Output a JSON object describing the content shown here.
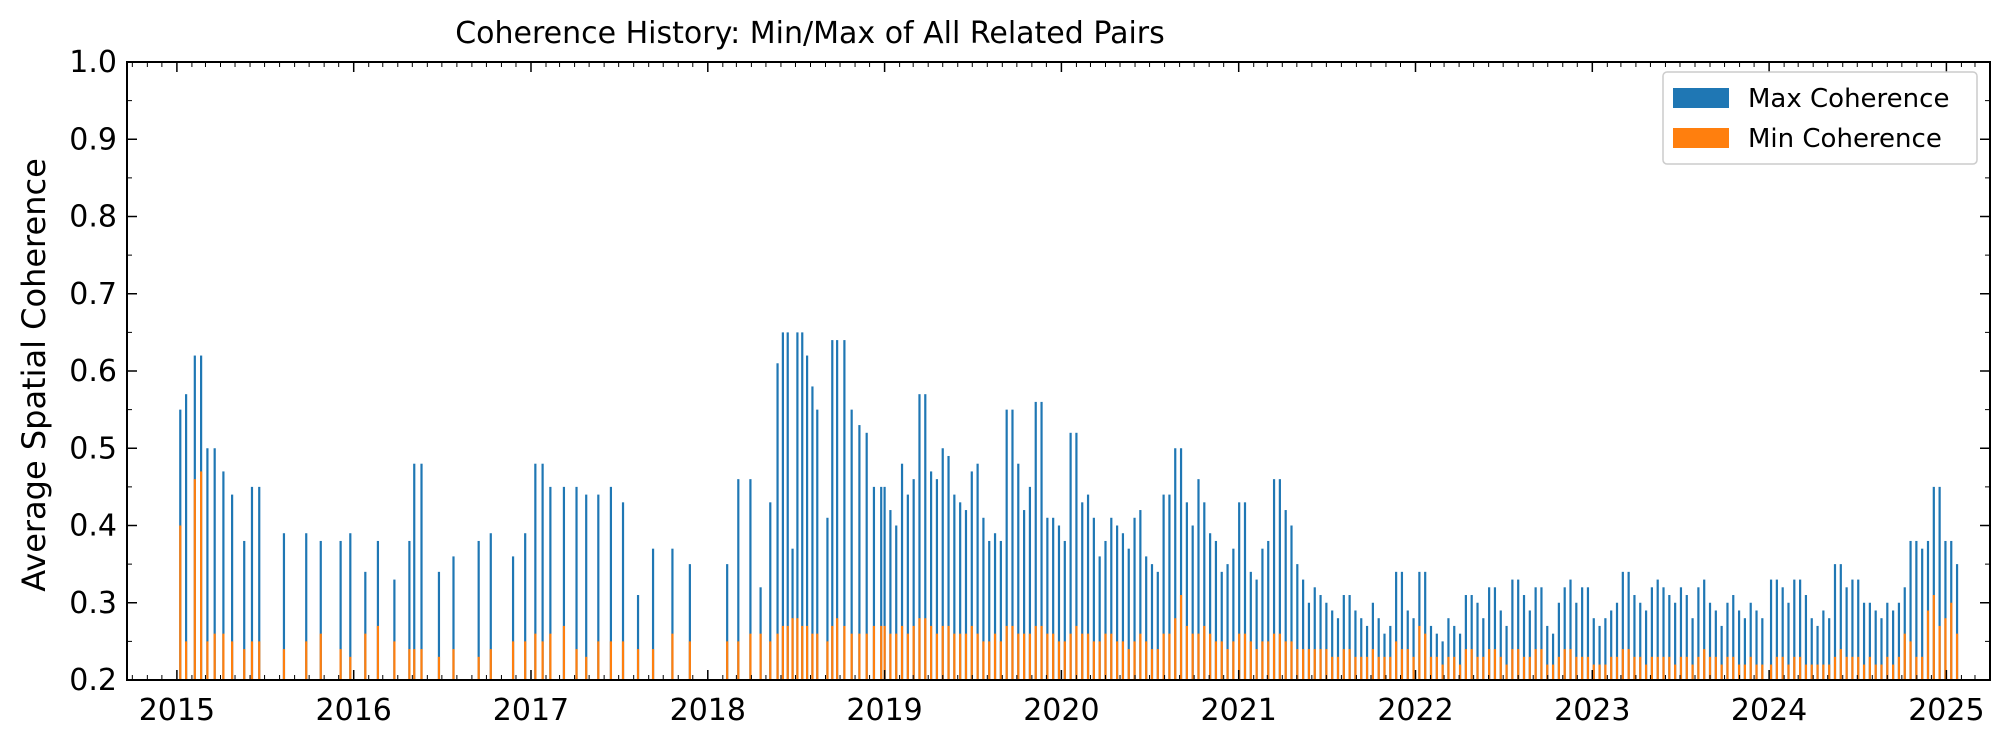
{
  "chart_data": {
    "type": "bar",
    "title": "Coherence History: Min/Max of All Related Pairs",
    "xlabel": "",
    "ylabel": "Average Spatial Coherence",
    "xlim": [
      "2014-09-20",
      "2025-04-01"
    ],
    "ylim": [
      0.2,
      1.0
    ],
    "y_ticks": [
      "0.2",
      "0.3",
      "0.4",
      "0.5",
      "0.6",
      "0.7",
      "0.8",
      "0.9",
      "1.0"
    ],
    "x_ticks": [
      "2015",
      "2016",
      "2017",
      "2018",
      "2019",
      "2020",
      "2021",
      "2022",
      "2023",
      "2024",
      "2025"
    ],
    "legend_position": "top-right",
    "grid": false,
    "colors": {
      "max": "#1f77b4",
      "min": "#ff7f0e"
    },
    "series": [
      {
        "name": "Max Coherence",
        "key": "max",
        "points": [
          [
            "2015-01-08",
            0.55
          ],
          [
            "2015-01-20",
            0.57
          ],
          [
            "2015-02-07",
            0.62
          ],
          [
            "2015-02-20",
            0.62
          ],
          [
            "2015-03-05",
            0.5
          ],
          [
            "2015-03-20",
            0.5
          ],
          [
            "2015-04-07",
            0.47
          ],
          [
            "2015-04-25",
            0.44
          ],
          [
            "2015-05-20",
            0.38
          ],
          [
            "2015-06-05",
            0.45
          ],
          [
            "2015-06-20",
            0.45
          ],
          [
            "2015-08-10",
            0.39
          ],
          [
            "2015-09-25",
            0.39
          ],
          [
            "2015-10-25",
            0.38
          ],
          [
            "2015-12-05",
            0.38
          ],
          [
            "2015-12-25",
            0.39
          ],
          [
            "2016-01-25",
            0.34
          ],
          [
            "2016-02-20",
            0.38
          ],
          [
            "2016-03-25",
            0.33
          ],
          [
            "2016-04-25",
            0.38
          ],
          [
            "2016-05-05",
            0.48
          ],
          [
            "2016-05-20",
            0.48
          ],
          [
            "2016-06-25",
            0.34
          ],
          [
            "2016-07-25",
            0.36
          ],
          [
            "2016-09-15",
            0.38
          ],
          [
            "2016-10-10",
            0.39
          ],
          [
            "2016-11-25",
            0.36
          ],
          [
            "2016-12-20",
            0.39
          ],
          [
            "2017-01-10",
            0.48
          ],
          [
            "2017-01-25",
            0.48
          ],
          [
            "2017-02-10",
            0.45
          ],
          [
            "2017-03-10",
            0.45
          ],
          [
            "2017-04-05",
            0.45
          ],
          [
            "2017-04-25",
            0.44
          ],
          [
            "2017-05-20",
            0.44
          ],
          [
            "2017-06-15",
            0.45
          ],
          [
            "2017-07-10",
            0.43
          ],
          [
            "2017-08-10",
            0.31
          ],
          [
            "2017-09-10",
            0.37
          ],
          [
            "2017-10-20",
            0.37
          ],
          [
            "2017-11-25",
            0.35
          ],
          [
            "2018-02-10",
            0.35
          ],
          [
            "2018-03-05",
            0.46
          ],
          [
            "2018-03-30",
            0.46
          ],
          [
            "2018-04-20",
            0.32
          ],
          [
            "2018-05-10",
            0.43
          ],
          [
            "2018-05-25",
            0.61
          ],
          [
            "2018-06-05",
            0.65
          ],
          [
            "2018-06-15",
            0.65
          ],
          [
            "2018-06-25",
            0.37
          ],
          [
            "2018-07-05",
            0.65
          ],
          [
            "2018-07-15",
            0.65
          ],
          [
            "2018-07-25",
            0.62
          ],
          [
            "2018-08-05",
            0.58
          ],
          [
            "2018-08-15",
            0.55
          ],
          [
            "2018-09-05",
            0.41
          ],
          [
            "2018-09-15",
            0.64
          ],
          [
            "2018-09-25",
            0.64
          ],
          [
            "2018-10-10",
            0.64
          ],
          [
            "2018-10-25",
            0.55
          ],
          [
            "2018-11-10",
            0.53
          ],
          [
            "2018-11-25",
            0.52
          ],
          [
            "2018-12-10",
            0.45
          ],
          [
            "2018-12-25",
            0.45
          ]
        ]
      },
      {
        "name": "Min Coherence",
        "key": "min",
        "points": [
          [
            "2015-01-08",
            0.4
          ],
          [
            "2015-01-20",
            0.25
          ],
          [
            "2015-02-07",
            0.46
          ],
          [
            "2015-02-20",
            0.47
          ],
          [
            "2015-03-05",
            0.25
          ],
          [
            "2015-03-20",
            0.26
          ],
          [
            "2015-04-07",
            0.26
          ],
          [
            "2015-04-25",
            0.25
          ],
          [
            "2015-05-20",
            0.24
          ],
          [
            "2015-06-05",
            0.25
          ],
          [
            "2015-06-20",
            0.25
          ],
          [
            "2015-08-10",
            0.24
          ],
          [
            "2015-09-25",
            0.25
          ],
          [
            "2015-10-25",
            0.26
          ],
          [
            "2015-12-05",
            0.24
          ],
          [
            "2015-12-25",
            0.23
          ],
          [
            "2016-01-25",
            0.26
          ],
          [
            "2016-02-20",
            0.27
          ],
          [
            "2016-03-25",
            0.25
          ],
          [
            "2016-04-25",
            0.24
          ],
          [
            "2016-05-05",
            0.24
          ],
          [
            "2016-05-20",
            0.24
          ],
          [
            "2016-06-25",
            0.23
          ],
          [
            "2016-07-25",
            0.24
          ],
          [
            "2016-09-15",
            0.23
          ],
          [
            "2016-10-10",
            0.24
          ],
          [
            "2016-11-25",
            0.25
          ],
          [
            "2016-12-20",
            0.25
          ],
          [
            "2017-01-10",
            0.26
          ],
          [
            "2017-01-25",
            0.25
          ],
          [
            "2017-02-10",
            0.26
          ],
          [
            "2017-03-10",
            0.27
          ],
          [
            "2017-04-05",
            0.24
          ],
          [
            "2017-04-25",
            0.23
          ],
          [
            "2017-05-20",
            0.25
          ],
          [
            "2017-06-15",
            0.25
          ],
          [
            "2017-07-10",
            0.25
          ],
          [
            "2017-08-10",
            0.24
          ],
          [
            "2017-09-10",
            0.24
          ],
          [
            "2017-10-20",
            0.26
          ],
          [
            "2017-11-25",
            0.25
          ],
          [
            "2018-02-10",
            0.25
          ],
          [
            "2018-03-05",
            0.25
          ],
          [
            "2018-03-30",
            0.26
          ],
          [
            "2018-04-20",
            0.26
          ],
          [
            "2018-05-10",
            0.25
          ],
          [
            "2018-05-25",
            0.26
          ],
          [
            "2018-06-05",
            0.27
          ],
          [
            "2018-06-15",
            0.27
          ],
          [
            "2018-06-25",
            0.28
          ],
          [
            "2018-07-05",
            0.28
          ],
          [
            "2018-07-15",
            0.27
          ],
          [
            "2018-07-25",
            0.27
          ],
          [
            "2018-08-05",
            0.26
          ],
          [
            "2018-08-15",
            0.26
          ],
          [
            "2018-09-05",
            0.25
          ],
          [
            "2018-09-15",
            0.27
          ],
          [
            "2018-09-25",
            0.28
          ],
          [
            "2018-10-10",
            0.27
          ],
          [
            "2018-10-25",
            0.26
          ],
          [
            "2018-11-10",
            0.26
          ],
          [
            "2018-11-25",
            0.26
          ],
          [
            "2018-12-10",
            0.27
          ],
          [
            "2018-12-25",
            0.27
          ]
        ]
      }
    ],
    "dense_segments": [
      {
        "start": "2019-01-01",
        "end": "2023-12-20",
        "step_days": 12,
        "max_values": [
          0.45,
          0.42,
          0.4,
          0.48,
          0.44,
          0.46,
          0.57,
          0.57,
          0.47,
          0.46,
          0.5,
          0.49,
          0.44,
          0.43,
          0.42,
          0.47,
          0.48,
          0.41,
          0.38,
          0.39,
          0.38,
          0.55,
          0.55,
          0.48,
          0.42,
          0.45,
          0.56,
          0.56,
          0.41,
          0.41,
          0.4,
          0.38,
          0.52,
          0.52,
          0.43,
          0.44,
          0.41,
          0.36,
          0.38,
          0.41,
          0.4,
          0.39,
          0.37,
          0.41,
          0.42,
          0.36,
          0.35,
          0.34,
          0.44,
          0.44,
          0.5,
          0.5,
          0.43,
          0.4,
          0.46,
          0.43,
          0.39,
          0.38,
          0.34,
          0.35,
          0.37,
          0.43,
          0.43,
          0.34,
          0.33,
          0.37,
          0.38,
          0.46,
          0.46,
          0.42,
          0.4,
          0.35,
          0.33,
          0.3,
          0.32,
          0.31,
          0.3,
          0.29,
          0.28,
          0.31,
          0.31,
          0.29,
          0.28,
          0.27,
          0.3,
          0.28,
          0.26,
          0.27,
          0.34,
          0.34,
          0.29,
          0.28,
          0.34,
          0.34,
          0.27,
          0.26,
          0.25,
          0.28,
          0.27,
          0.26,
          0.31,
          0.31,
          0.3,
          0.28,
          0.32,
          0.32,
          0.29,
          0.27,
          0.33,
          0.33,
          0.31,
          0.29,
          0.32,
          0.32,
          0.27,
          0.26,
          0.3,
          0.32,
          0.33,
          0.3,
          0.32,
          0.32,
          0.28,
          0.27,
          0.28,
          0.29,
          0.3,
          0.34,
          0.34,
          0.31,
          0.3,
          0.29,
          0.32,
          0.33,
          0.32,
          0.31,
          0.3,
          0.32,
          0.31,
          0.28,
          0.32,
          0.33,
          0.3,
          0.29,
          0.27,
          0.3,
          0.31,
          0.29,
          0.28,
          0.3,
          0.29,
          0.28
        ],
        "min_values": [
          0.27,
          0.26,
          0.26,
          0.27,
          0.26,
          0.27,
          0.28,
          0.28,
          0.27,
          0.26,
          0.27,
          0.27,
          0.26,
          0.26,
          0.26,
          0.27,
          0.26,
          0.25,
          0.25,
          0.26,
          0.25,
          0.27,
          0.27,
          0.26,
          0.26,
          0.26,
          0.27,
          0.27,
          0.26,
          0.26,
          0.25,
          0.25,
          0.26,
          0.27,
          0.26,
          0.26,
          0.25,
          0.25,
          0.26,
          0.26,
          0.25,
          0.25,
          0.24,
          0.25,
          0.26,
          0.25,
          0.24,
          0.24,
          0.26,
          0.26,
          0.28,
          0.31,
          0.27,
          0.26,
          0.26,
          0.27,
          0.26,
          0.25,
          0.25,
          0.24,
          0.25,
          0.26,
          0.26,
          0.25,
          0.24,
          0.25,
          0.25,
          0.26,
          0.26,
          0.25,
          0.25,
          0.24,
          0.24,
          0.24,
          0.24,
          0.24,
          0.24,
          0.23,
          0.23,
          0.24,
          0.24,
          0.23,
          0.23,
          0.23,
          0.24,
          0.23,
          0.23,
          0.23,
          0.25,
          0.24,
          0.24,
          0.23,
          0.27,
          0.26,
          0.23,
          0.23,
          0.22,
          0.23,
          0.23,
          0.22,
          0.24,
          0.24,
          0.23,
          0.23,
          0.24,
          0.24,
          0.23,
          0.22,
          0.24,
          0.24,
          0.23,
          0.23,
          0.24,
          0.24,
          0.22,
          0.22,
          0.23,
          0.24,
          0.24,
          0.23,
          0.23,
          0.23,
          0.22,
          0.22,
          0.22,
          0.23,
          0.23,
          0.24,
          0.24,
          0.23,
          0.23,
          0.22,
          0.23,
          0.23,
          0.23,
          0.23,
          0.22,
          0.23,
          0.23,
          0.22,
          0.23,
          0.24,
          0.23,
          0.23,
          0.22,
          0.23,
          0.23,
          0.22,
          0.22,
          0.23,
          0.22,
          0.22
        ]
      },
      {
        "start": "2024-01-05",
        "end": "2025-01-31",
        "step_days": 12,
        "max_values": [
          0.33,
          0.33,
          0.32,
          0.3,
          0.33,
          0.33,
          0.31,
          0.28,
          0.27,
          0.29,
          0.28,
          0.35,
          0.35,
          0.32,
          0.33,
          0.33,
          0.3,
          0.3,
          0.29,
          0.28,
          0.3,
          0.29,
          0.3,
          0.32,
          0.38,
          0.38,
          0.37,
          0.38,
          0.45,
          0.45,
          0.38,
          0.38,
          0.35
        ],
        "min_values": [
          0.22,
          0.23,
          0.23,
          0.22,
          0.23,
          0.23,
          0.22,
          0.22,
          0.22,
          0.22,
          0.22,
          0.23,
          0.24,
          0.23,
          0.23,
          0.23,
          0.22,
          0.23,
          0.22,
          0.22,
          0.23,
          0.22,
          0.23,
          0.26,
          0.25,
          0.23,
          0.23,
          0.29,
          0.31,
          0.27,
          0.28,
          0.3,
          0.26
        ]
      }
    ]
  }
}
